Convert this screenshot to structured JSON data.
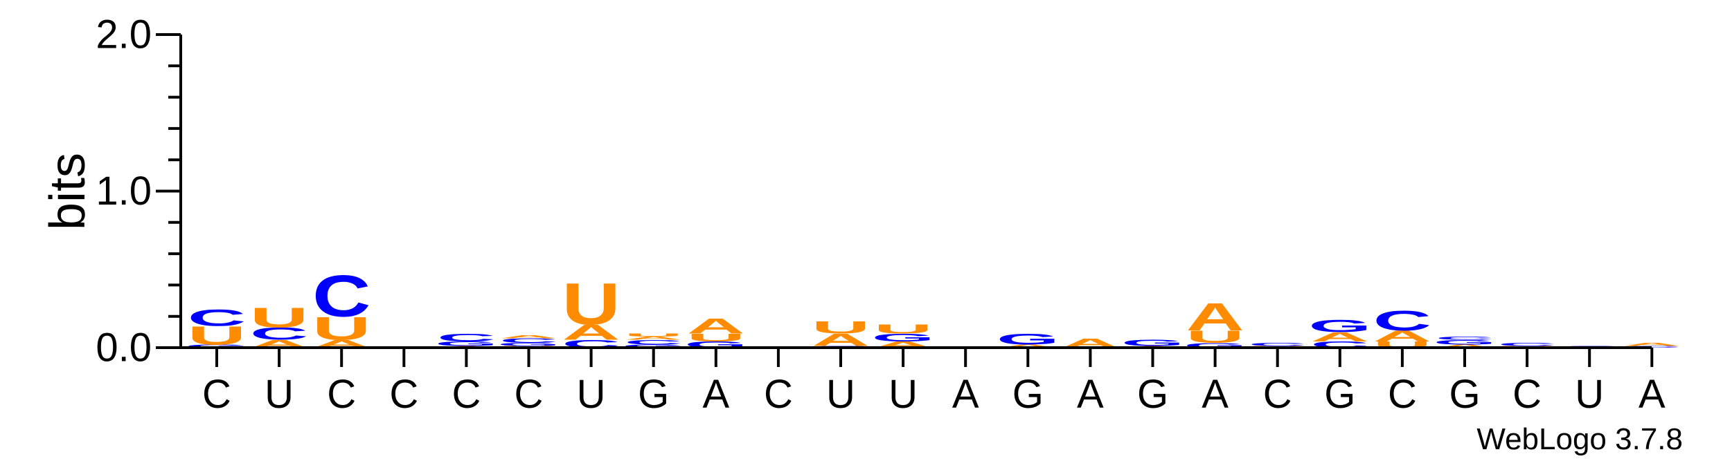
{
  "chart_data": {
    "type": "sequence-logo",
    "ylabel": "bits",
    "ylim": [
      0,
      2.0
    ],
    "yticks": [
      "0.0",
      "1.0",
      "2.0"
    ],
    "colors": {
      "A": "#ff8c00",
      "U": "#ff8c00",
      "C": "#0000ff",
      "G": "#0000ff"
    },
    "consensus": [
      "C",
      "U",
      "C",
      "C",
      "C",
      "C",
      "U",
      "G",
      "A",
      "C",
      "U",
      "U",
      "A",
      "G",
      "A",
      "G",
      "A",
      "C",
      "G",
      "C",
      "G",
      "C",
      "U",
      "A"
    ],
    "positions": [
      {
        "stack": [
          [
            "G",
            0.02
          ],
          [
            "U",
            0.12
          ],
          [
            "C",
            0.11
          ]
        ]
      },
      {
        "stack": [
          [
            "A",
            0.05
          ],
          [
            "C",
            0.08
          ],
          [
            "U",
            0.13
          ]
        ]
      },
      {
        "stack": [
          [
            "A",
            0.05
          ],
          [
            "U",
            0.15
          ],
          [
            "C",
            0.27
          ]
        ]
      },
      {
        "stack": []
      },
      {
        "stack": [
          [
            "A",
            0.01
          ],
          [
            "G",
            0.03
          ],
          [
            "C",
            0.05
          ]
        ]
      },
      {
        "stack": [
          [
            "U",
            0.01
          ],
          [
            "G",
            0.02
          ],
          [
            "C",
            0.03
          ],
          [
            "A",
            0.02
          ]
        ]
      },
      {
        "stack": [
          [
            "C",
            0.05
          ],
          [
            "A",
            0.1
          ],
          [
            "U",
            0.27
          ]
        ]
      },
      {
        "stack": [
          [
            "G",
            0.02
          ],
          [
            "C",
            0.03
          ],
          [
            "A",
            0.02
          ],
          [
            "U",
            0.02
          ]
        ]
      },
      {
        "stack": [
          [
            "G",
            0.04
          ],
          [
            "U",
            0.05
          ],
          [
            "A",
            0.1
          ]
        ]
      },
      {
        "stack": []
      },
      {
        "stack": [
          [
            "C",
            0.01
          ],
          [
            "A",
            0.08
          ],
          [
            "U",
            0.08
          ]
        ]
      },
      {
        "stack": [
          [
            "A",
            0.04
          ],
          [
            "G",
            0.05
          ],
          [
            "U",
            0.06
          ]
        ]
      },
      {
        "stack": []
      },
      {
        "stack": [
          [
            "A",
            0.02
          ],
          [
            "G",
            0.07
          ]
        ]
      },
      {
        "stack": [
          [
            "A",
            0.06
          ]
        ]
      },
      {
        "stack": [
          [
            "A",
            0.01
          ],
          [
            "G",
            0.04
          ]
        ]
      },
      {
        "stack": [
          [
            "G",
            0.03
          ],
          [
            "U",
            0.08
          ],
          [
            "A",
            0.18
          ]
        ]
      },
      {
        "stack": [
          [
            "U",
            0.01
          ],
          [
            "C",
            0.02
          ]
        ]
      },
      {
        "stack": [
          [
            "C",
            0.04
          ],
          [
            "A",
            0.06
          ],
          [
            "G",
            0.08
          ]
        ]
      },
      {
        "stack": [
          [
            "U",
            0.04
          ],
          [
            "A",
            0.07
          ],
          [
            "C",
            0.13
          ]
        ]
      },
      {
        "stack": [
          [
            "A",
            0.02
          ],
          [
            "G",
            0.03
          ],
          [
            "C",
            0.02
          ]
        ]
      },
      {
        "stack": [
          [
            "U",
            0.01
          ],
          [
            "C",
            0.02
          ]
        ]
      },
      {
        "stack": [
          [
            "C",
            0.01
          ]
        ]
      },
      {
        "stack": [
          [
            "C",
            0.01
          ],
          [
            "A",
            0.02
          ]
        ]
      }
    ],
    "credit": "WebLogo 3.7.8"
  }
}
